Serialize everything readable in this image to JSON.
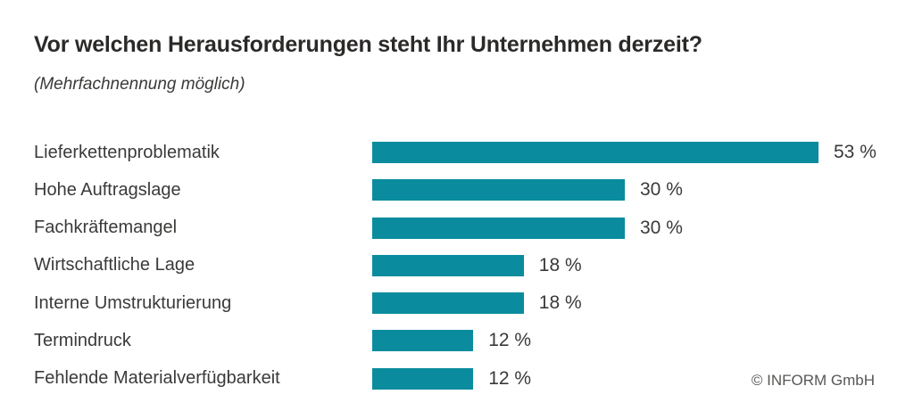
{
  "header": {
    "title": "Vor welchen Herausforderungen steht Ihr Unternehmen derzeit?",
    "subtitle": "(Mehrfachnennung möglich)"
  },
  "footer": {
    "copyright": "© INFORM GmbH"
  },
  "colors": {
    "bar": "#0a8c9e",
    "title_text": "#2b2a29",
    "label_text": "#3a3a39",
    "copyright_text": "#575756",
    "background": "#ffffff"
  },
  "chart_data": {
    "type": "bar",
    "orientation": "horizontal",
    "title": "Vor welchen Herausforderungen steht Ihr Unternehmen derzeit?",
    "subtitle": "(Mehrfachnennung möglich)",
    "xlabel": "",
    "ylabel": "",
    "xlim": [
      0,
      53
    ],
    "grid": false,
    "legend": false,
    "unit": "%",
    "categories": [
      "Lieferkettenproblematik",
      "Hohe Auftragslage",
      "Fachkräftemangel",
      "Wirtschaftliche Lage",
      "Interne Umstrukturierung",
      "Termindruck",
      "Fehlende Materialverfügbarkeit"
    ],
    "values": [
      53,
      30,
      30,
      18,
      18,
      12,
      12
    ],
    "value_labels": [
      "53 %",
      "30 %",
      "30 %",
      "18 %",
      "18 %",
      "12 %",
      "12 %"
    ]
  }
}
